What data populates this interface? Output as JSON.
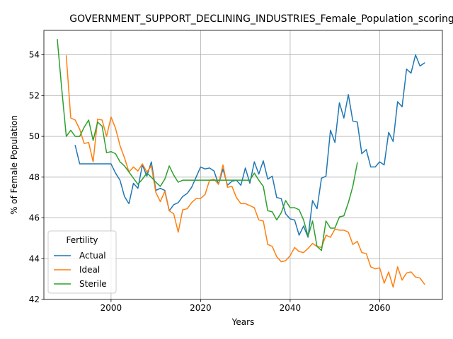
{
  "chart_data": {
    "type": "line",
    "title": "GOVERNMENT_SUPPORT_DECLINING_INDUSTRIES_Female_Population_scoring",
    "xlabel": "Years",
    "ylabel": "% of Female Population",
    "xlim": [
      1985,
      2074
    ],
    "ylim": [
      42,
      55.2
    ],
    "xticks": [
      2000,
      2020,
      2040,
      2060
    ],
    "yticks": [
      42,
      44,
      46,
      48,
      50,
      52,
      54
    ],
    "grid": true,
    "legend": {
      "title": "Fertility",
      "position": "lower-left"
    },
    "series": [
      {
        "name": "Actual",
        "color": "#1f77b4",
        "x": [
          1992,
          1993,
          1994,
          1995,
          1996,
          1997,
          1998,
          1999,
          2000,
          2001,
          2002,
          2003,
          2004,
          2005,
          2006,
          2007,
          2008,
          2009,
          2010,
          2011,
          2012,
          2013,
          2014,
          2015,
          2016,
          2017,
          2018,
          2019,
          2020,
          2021,
          2022,
          2023,
          2024,
          2025,
          2026,
          2027,
          2028,
          2029,
          2030,
          2031,
          2032,
          2033,
          2034,
          2035,
          2036,
          2037,
          2038,
          2039,
          2040,
          2041,
          2042,
          2043,
          2044,
          2045,
          2046,
          2047,
          2048,
          2049,
          2050,
          2051,
          2052,
          2053,
          2054,
          2055,
          2056,
          2057,
          2058,
          2059,
          2060,
          2061,
          2062,
          2063,
          2064,
          2065,
          2066,
          2067,
          2068,
          2069,
          2070
        ],
        "values": [
          49.55,
          48.65,
          48.65,
          48.65,
          48.65,
          48.65,
          48.65,
          48.65,
          48.65,
          48.2,
          47.85,
          47.05,
          46.7,
          47.7,
          47.45,
          48.6,
          48.05,
          48.75,
          47.35,
          47.45,
          47.35,
          46.35,
          46.65,
          46.75,
          47.05,
          47.2,
          47.5,
          48.0,
          48.5,
          48.4,
          48.45,
          48.3,
          47.65,
          48.4,
          47.6,
          47.8,
          47.85,
          47.6,
          48.45,
          47.7,
          48.75,
          48.15,
          48.8,
          47.9,
          48.05,
          47.0,
          46.95,
          46.2,
          45.95,
          45.9,
          45.15,
          45.6,
          45.05,
          46.85,
          46.45,
          47.95,
          48.05,
          50.3,
          49.7,
          51.65,
          50.9,
          52.05,
          50.75,
          50.7,
          49.15,
          49.35,
          48.5,
          48.5,
          48.75,
          48.6,
          50.2,
          49.75,
          51.7,
          51.45,
          53.3,
          53.1,
          54.0,
          53.45,
          53.6
        ]
      },
      {
        "name": "Ideal",
        "color": "#ff7f0e",
        "x": [
          1990,
          1991,
          1992,
          1993,
          1994,
          1995,
          1996,
          1997,
          1998,
          1999,
          2000,
          2001,
          2002,
          2003,
          2004,
          2005,
          2006,
          2007,
          2008,
          2009,
          2010,
          2011,
          2012,
          2013,
          2014,
          2015,
          2016,
          2017,
          2018,
          2019,
          2020,
          2021,
          2022,
          2023,
          2024,
          2025,
          2026,
          2027,
          2028,
          2029,
          2030,
          2031,
          2032,
          2033,
          2034,
          2035,
          2036,
          2037,
          2038,
          2039,
          2040,
          2041,
          2042,
          2043,
          2044,
          2045,
          2046,
          2047,
          2048,
          2049,
          2050,
          2051,
          2052,
          2053,
          2054,
          2055,
          2056,
          2057,
          2058,
          2059,
          2060,
          2061,
          2062,
          2063,
          2064,
          2065,
          2066,
          2067,
          2068,
          2069,
          2070
        ],
        "values": [
          53.95,
          50.9,
          50.8,
          50.35,
          49.65,
          49.7,
          48.75,
          50.85,
          50.8,
          50.0,
          50.95,
          50.4,
          49.55,
          48.95,
          48.25,
          48.5,
          48.3,
          48.65,
          48.25,
          48.55,
          47.25,
          46.8,
          47.3,
          46.35,
          46.2,
          45.3,
          46.4,
          46.45,
          46.75,
          46.95,
          46.95,
          47.15,
          47.85,
          47.9,
          47.65,
          48.6,
          47.5,
          47.55,
          47.0,
          46.7,
          46.7,
          46.6,
          46.5,
          45.9,
          45.85,
          44.7,
          44.6,
          44.1,
          43.85,
          43.9,
          44.15,
          44.55,
          44.35,
          44.3,
          44.5,
          44.75,
          44.6,
          44.55,
          45.15,
          45.05,
          45.45,
          45.4,
          45.4,
          45.3,
          44.7,
          44.85,
          44.3,
          44.25,
          43.6,
          43.5,
          43.55,
          42.8,
          43.35,
          42.6,
          43.6,
          42.95,
          43.3,
          43.35,
          43.1,
          43.05,
          42.75
        ]
      },
      {
        "name": "Sterile",
        "color": "#2ca02c",
        "x": [
          1988,
          1989,
          1990,
          1991,
          1992,
          1993,
          1994,
          1995,
          1996,
          1997,
          1998,
          1999,
          2000,
          2001,
          2002,
          2003,
          2004,
          2005,
          2006,
          2007,
          2008,
          2009,
          2010,
          2011,
          2012,
          2013,
          2014,
          2015,
          2016,
          2017,
          2018,
          2019,
          2020,
          2021,
          2022,
          2023,
          2024,
          2025,
          2026,
          2027,
          2028,
          2029,
          2030,
          2031,
          2032,
          2033,
          2034,
          2035,
          2036,
          2037,
          2038,
          2039,
          2040,
          2041,
          2042,
          2043,
          2044,
          2045,
          2046,
          2047,
          2048,
          2049,
          2050,
          2051,
          2052,
          2053,
          2054,
          2055
        ],
        "values": [
          54.75,
          52.3,
          50.0,
          50.3,
          50.0,
          50.0,
          50.45,
          50.8,
          49.8,
          50.7,
          50.5,
          49.2,
          49.25,
          49.15,
          48.75,
          48.55,
          48.25,
          47.95,
          47.65,
          47.9,
          48.2,
          48.0,
          47.75,
          47.55,
          47.9,
          48.55,
          48.1,
          47.75,
          47.85,
          47.85,
          47.85,
          47.85,
          47.85,
          47.85,
          47.85,
          47.85,
          47.85,
          47.85,
          47.85,
          47.85,
          47.85,
          47.85,
          47.85,
          47.85,
          48.2,
          47.85,
          47.55,
          46.35,
          46.3,
          45.9,
          46.25,
          46.85,
          46.5,
          46.5,
          46.4,
          45.9,
          45.1,
          45.85,
          44.6,
          44.4,
          45.85,
          45.5,
          45.5,
          46.05,
          46.1,
          46.75,
          47.55,
          48.7
        ]
      }
    ]
  }
}
